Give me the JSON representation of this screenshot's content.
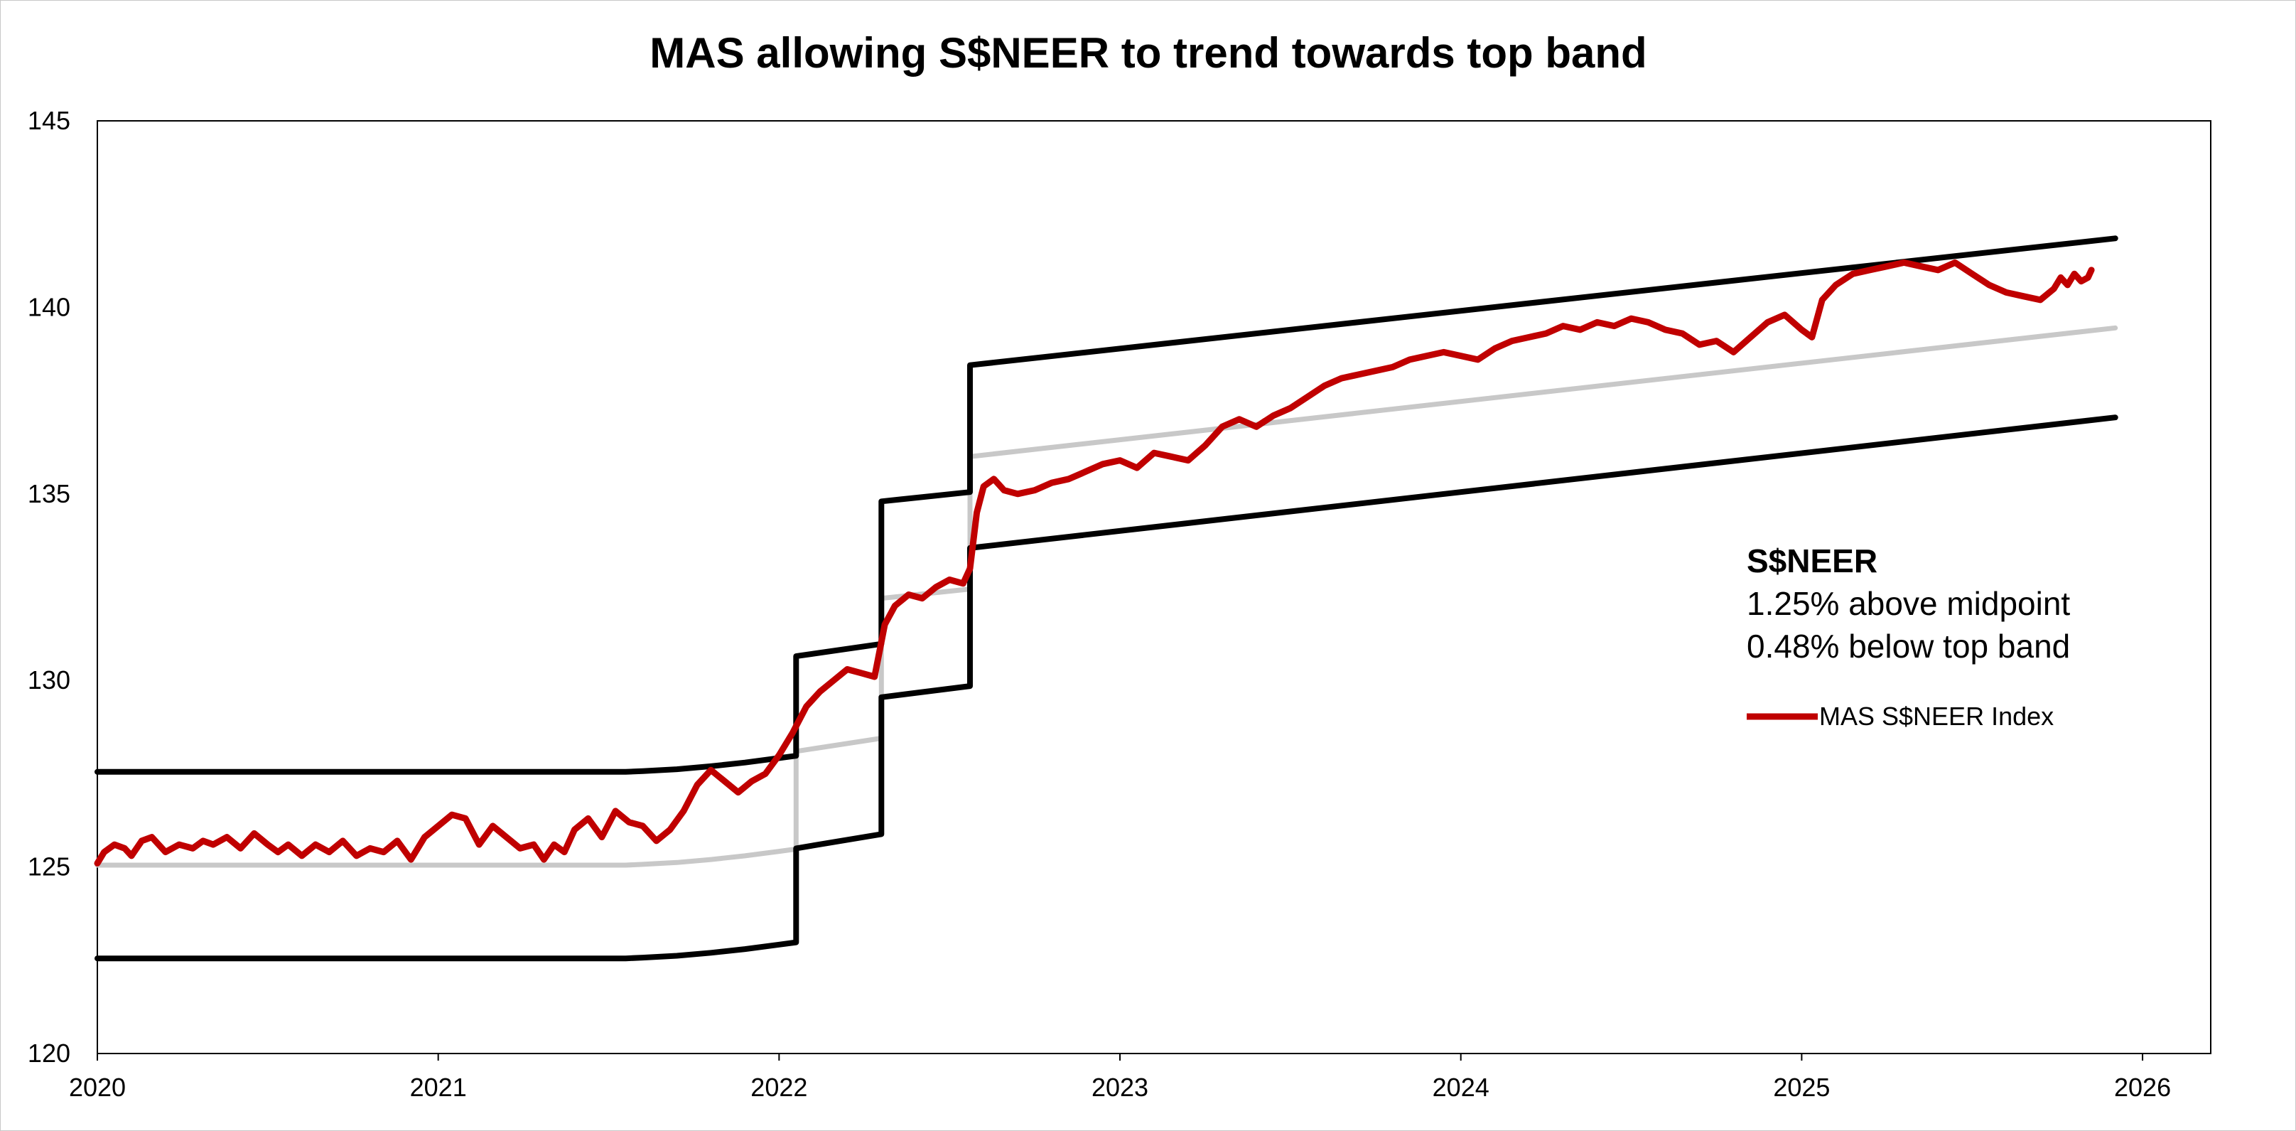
{
  "chart_data": {
    "type": "line",
    "title": "MAS allowing S$NEER to trend towards top band",
    "xlabel": "",
    "ylabel": "",
    "xlim": [
      2020.0,
      2026.2
    ],
    "ylim": [
      120,
      145
    ],
    "x_ticks": [
      2020,
      2021,
      2022,
      2023,
      2024,
      2025,
      2026
    ],
    "y_ticks": [
      120,
      125,
      130,
      135,
      140,
      145
    ],
    "grid": false,
    "legend": {
      "position": "right",
      "entries": [
        "MAS S$NEER Index"
      ]
    },
    "annotation": {
      "heading": "S$NEER",
      "lines": [
        "1.25% above midpoint",
        "0.48% below top band"
      ]
    },
    "series": [
      {
        "name": "MAS S$NEER Index",
        "color": "#c00000",
        "x": [
          2020.0,
          2020.02,
          2020.05,
          2020.08,
          2020.1,
          2020.13,
          2020.16,
          2020.2,
          2020.24,
          2020.28,
          2020.31,
          2020.34,
          2020.38,
          2020.42,
          2020.46,
          2020.5,
          2020.53,
          2020.56,
          2020.6,
          2020.64,
          2020.68,
          2020.72,
          2020.76,
          2020.8,
          2020.84,
          2020.88,
          2020.92,
          2020.96,
          2021.0,
          2021.04,
          2021.08,
          2021.12,
          2021.16,
          2021.2,
          2021.24,
          2021.28,
          2021.31,
          2021.34,
          2021.37,
          2021.4,
          2021.44,
          2021.48,
          2021.52,
          2021.56,
          2021.6,
          2021.64,
          2021.68,
          2021.72,
          2021.76,
          2021.8,
          2021.84,
          2021.88,
          2021.92,
          2021.96,
          2022.0,
          2022.04,
          2022.08,
          2022.12,
          2022.16,
          2022.2,
          2022.24,
          2022.28,
          2022.31,
          2022.34,
          2022.38,
          2022.42,
          2022.46,
          2022.5,
          2022.54,
          2022.56,
          2022.58,
          2022.6,
          2022.63,
          2022.66,
          2022.7,
          2022.75,
          2022.8,
          2022.85,
          2022.9,
          2022.95,
          2023.0,
          2023.05,
          2023.1,
          2023.15,
          2023.2,
          2023.25,
          2023.3,
          2023.35,
          2023.4,
          2023.45,
          2023.5,
          2023.55,
          2023.6,
          2023.65,
          2023.7,
          2023.75,
          2023.8,
          2023.85,
          2023.9,
          2023.95,
          2024.0,
          2024.05,
          2024.1,
          2024.15,
          2024.2,
          2024.25,
          2024.3,
          2024.35,
          2024.4,
          2024.45,
          2024.5,
          2024.55,
          2024.6,
          2024.65,
          2024.7,
          2024.75,
          2024.8,
          2024.85,
          2024.9,
          2024.95,
          2025.0,
          2025.03,
          2025.06,
          2025.1,
          2025.15,
          2025.2,
          2025.25,
          2025.3,
          2025.35,
          2025.4,
          2025.45,
          2025.5,
          2025.55,
          2025.6,
          2025.65,
          2025.7,
          2025.74,
          2025.76,
          2025.78,
          2025.8,
          2025.82,
          2025.84,
          2025.85
        ],
        "y": [
          125.1,
          125.4,
          125.6,
          125.5,
          125.3,
          125.7,
          125.8,
          125.4,
          125.6,
          125.5,
          125.7,
          125.6,
          125.8,
          125.5,
          125.9,
          125.6,
          125.4,
          125.6,
          125.3,
          125.6,
          125.4,
          125.7,
          125.3,
          125.5,
          125.4,
          125.7,
          125.2,
          125.8,
          126.1,
          126.4,
          126.3,
          125.6,
          126.1,
          125.8,
          125.5,
          125.6,
          125.2,
          125.6,
          125.4,
          126.0,
          126.3,
          125.8,
          126.5,
          126.2,
          126.1,
          125.7,
          126.0,
          126.5,
          127.2,
          127.6,
          127.3,
          127.0,
          127.3,
          127.5,
          128.0,
          128.6,
          129.3,
          129.7,
          130.0,
          130.3,
          130.2,
          130.1,
          131.5,
          132.0,
          132.3,
          132.2,
          132.5,
          132.7,
          132.6,
          133.0,
          134.5,
          135.2,
          135.4,
          135.1,
          135.0,
          135.1,
          135.3,
          135.4,
          135.6,
          135.8,
          135.9,
          135.7,
          136.1,
          136.0,
          135.9,
          136.3,
          136.8,
          137.0,
          136.8,
          137.1,
          137.3,
          137.6,
          137.9,
          138.1,
          138.2,
          138.3,
          138.4,
          138.6,
          138.7,
          138.8,
          138.7,
          138.6,
          138.9,
          139.1,
          139.2,
          139.3,
          139.5,
          139.4,
          139.6,
          139.5,
          139.7,
          139.6,
          139.4,
          139.3,
          139.0,
          139.1,
          138.8,
          139.2,
          139.6,
          139.8,
          139.4,
          139.2,
          140.2,
          140.6,
          140.9,
          141.0,
          141.1,
          141.2,
          141.1,
          141.0,
          141.2,
          140.9,
          140.6,
          140.4,
          140.3,
          140.2,
          140.5,
          140.8,
          140.6,
          140.9,
          140.7,
          140.8,
          141.0
        ]
      },
      {
        "name": "",
        "color": "#000000",
        "x": [
          2020.0,
          2021.55,
          2021.6,
          2021.7,
          2021.8,
          2021.9,
          2022.0,
          2022.05,
          2022.05,
          2022.3,
          2022.3,
          2022.56,
          2022.56,
          2025.92
        ],
        "y": [
          127.55,
          127.55,
          127.57,
          127.62,
          127.7,
          127.8,
          127.92,
          127.98,
          130.65,
          130.98,
          134.8,
          135.05,
          138.45,
          141.85
        ]
      },
      {
        "name": "",
        "color": "#c8c8c8",
        "x": [
          2020.0,
          2021.55,
          2021.6,
          2021.7,
          2021.8,
          2021.9,
          2022.0,
          2022.05,
          2022.05,
          2022.3,
          2022.3,
          2022.56,
          2022.56,
          2025.92
        ],
        "y": [
          125.05,
          125.05,
          125.07,
          125.12,
          125.2,
          125.3,
          125.42,
          125.48,
          128.1,
          128.45,
          132.2,
          132.45,
          136.0,
          139.45
        ]
      },
      {
        "name": "",
        "color": "#000000",
        "x": [
          2020.0,
          2021.55,
          2021.6,
          2021.7,
          2021.8,
          2021.9,
          2022.0,
          2022.05,
          2022.05,
          2022.3,
          2022.3,
          2022.56,
          2022.56,
          2025.92
        ],
        "y": [
          122.55,
          122.55,
          122.57,
          122.62,
          122.7,
          122.8,
          122.92,
          122.98,
          125.5,
          125.88,
          129.55,
          129.85,
          133.55,
          137.05
        ]
      }
    ]
  }
}
